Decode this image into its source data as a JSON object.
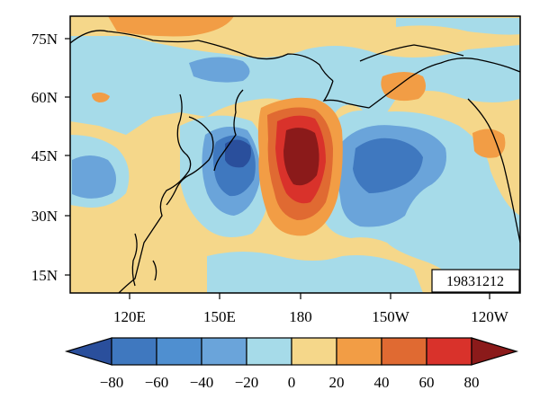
{
  "map": {
    "date_stamp": "19831212",
    "lat_ticks": [
      "75N",
      "60N",
      "45N",
      "30N",
      "15N"
    ],
    "lon_ticks": [
      "120E",
      "150E",
      "180",
      "150W",
      "120W"
    ]
  },
  "colorbar": {
    "labels": [
      "−80",
      "−60",
      "−40",
      "−20",
      "0",
      "20",
      "40",
      "60",
      "80"
    ],
    "colors": [
      "#2a4f9c",
      "#3f78bf",
      "#6aa4da",
      "#a6dbe9",
      "#f5d78a",
      "#f29d45",
      "#e06a32",
      "#d9322b",
      "#8b1a1a"
    ]
  },
  "colors": {
    "background_field": "#f5d78a",
    "negative_weak": "#a6dbe9",
    "negative_mid": "#6aa4da",
    "negative_strong": "#3f78bf",
    "negative_core": "#2a4f9c",
    "positive_weak": "#f29d45",
    "positive_mid": "#e06a32",
    "positive_strong": "#d9322b",
    "positive_core": "#8b1a1a"
  }
}
